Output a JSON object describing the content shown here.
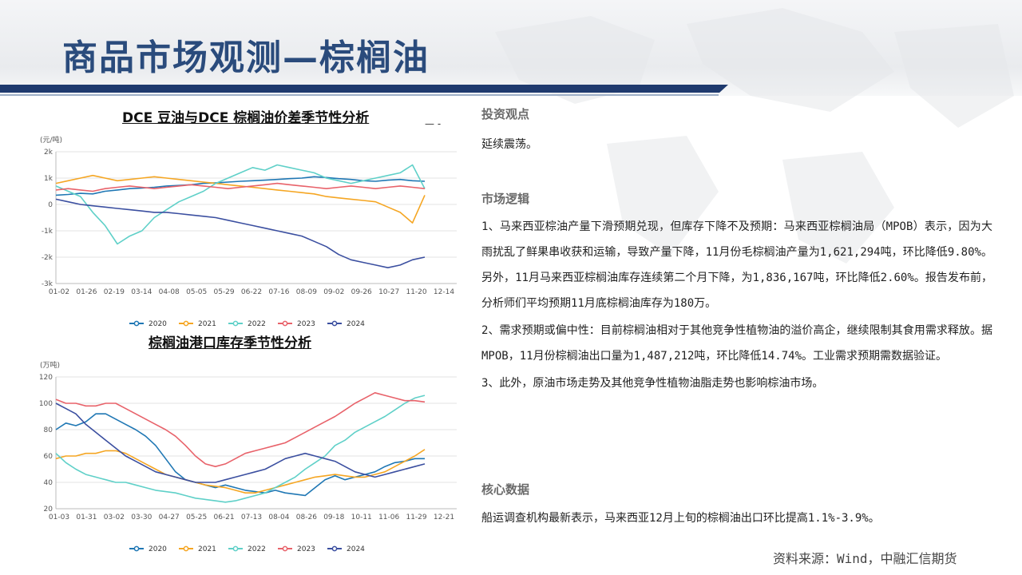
{
  "title": "商品市场观测—棕榈油",
  "chart_titles": {
    "chart1": "DCE 豆油与DCE 棕榈油价差季节性分析",
    "chart2": "棕榈油港口库存季节性分析"
  },
  "right": {
    "view_heading": "投资观点",
    "view_text": "延续震荡。",
    "logic_heading": "市场逻辑",
    "logic_paras": [
      "1、马来西亚棕油产量下滑预期兑现，但库存下降不及预期：马来西亚棕榈油局（MPOB）表示，因为大雨扰乱了鲜果串收获和运输，导致产量下降，11月份毛棕榈油产量为1,621,294吨，环比降低9.80%。另外，11月马来西亚棕榈油库存连续第二个月下降，为1,836,167吨，环比降低2.60%。报告发布前，分析师们平均预期11月底棕榈油库存为180万。",
      "2、需求预期或偏中性：目前棕榈油相对于其他竞争性植物油的溢价高企，继续限制其食用需求释放。据MPOB，11月份棕榈油出口量为1,487,212吨，环比降低14.74%。工业需求预期需数据验证。",
      "3、此外，原油市场走势及其他竞争性植物油脂走势也影响棕油市场。"
    ],
    "core_heading": "核心数据",
    "core_text": "船运调查机构最新表示，马来西亚12月上旬的棕榈油出口环比提高1.1%-3.9%。"
  },
  "source": "资料来源：Wind，中融汇信期货",
  "colors": {
    "title": "#2a4b7c",
    "bar": "#1f3a6e",
    "2020": "#1f77b4",
    "2021": "#f5a623",
    "2022": "#5fd0c8",
    "2023": "#e8626a",
    "2024": "#3b4fa0"
  },
  "chart_data": [
    {
      "type": "line",
      "unit": "(元/吨)",
      "ylim": [
        -3000,
        2000
      ],
      "yticks": [
        2000,
        1000,
        0,
        -1000,
        -2000,
        -3000
      ],
      "ytick_labels": [
        "2k",
        "1k",
        "0",
        "-1k",
        "-2k",
        "-3k"
      ],
      "xticks": [
        "01-02",
        "01-26",
        "02-19",
        "03-14",
        "04-08",
        "05-05",
        "05-29",
        "06-22",
        "07-16",
        "08-09",
        "09-02",
        "09-26",
        "10-27",
        "11-20",
        "12-14"
      ],
      "legend_position": "bottom",
      "series": [
        {
          "name": "2020",
          "values": [
            350,
            380,
            420,
            400,
            500,
            550,
            600,
            620,
            650,
            700,
            720,
            750,
            800,
            820,
            850,
            880,
            900,
            920,
            950,
            980,
            1000,
            1050,
            1020,
            980,
            950,
            900,
            880,
            920,
            950,
            900,
            880
          ]
        },
        {
          "name": "2021",
          "values": [
            800,
            900,
            1000,
            1100,
            1000,
            900,
            950,
            1000,
            1050,
            1000,
            950,
            900,
            850,
            800,
            750,
            700,
            650,
            600,
            550,
            500,
            450,
            400,
            300,
            250,
            200,
            150,
            100,
            -100,
            -300,
            -700,
            350
          ]
        },
        {
          "name": "2022",
          "values": [
            700,
            500,
            300,
            -300,
            -800,
            -1500,
            -1200,
            -1000,
            -500,
            -200,
            100,
            300,
            500,
            800,
            1000,
            1200,
            1400,
            1300,
            1500,
            1400,
            1300,
            1200,
            1000,
            900,
            800,
            900,
            1000,
            1100,
            1200,
            1500,
            600
          ]
        },
        {
          "name": "2023",
          "values": [
            550,
            600,
            550,
            500,
            600,
            650,
            700,
            650,
            600,
            650,
            700,
            750,
            700,
            650,
            600,
            650,
            700,
            750,
            800,
            750,
            700,
            650,
            600,
            650,
            700,
            650,
            600,
            650,
            700,
            650,
            600
          ]
        },
        {
          "name": "2024",
          "values": [
            200,
            100,
            0,
            -50,
            -100,
            -150,
            -200,
            -250,
            -300,
            -300,
            -350,
            -400,
            -450,
            -500,
            -600,
            -700,
            -800,
            -900,
            -1000,
            -1100,
            -1200,
            -1400,
            -1600,
            -1900,
            -2100,
            -2200,
            -2300,
            -2400,
            -2300,
            -2100,
            -2000
          ]
        }
      ]
    },
    {
      "type": "line",
      "unit": "(万吨)",
      "ylim": [
        20,
        120
      ],
      "yticks": [
        120,
        100,
        80,
        60,
        40,
        20
      ],
      "ytick_labels": [
        "120",
        "100",
        "80",
        "60",
        "40",
        "20"
      ],
      "xticks": [
        "01-03",
        "01-31",
        "03-02",
        "03-30",
        "04-27",
        "05-25",
        "06-21",
        "07-13",
        "08-04",
        "08-26",
        "09-18",
        "10-11",
        "11-06",
        "11-29",
        "12-21"
      ],
      "legend_position": "bottom",
      "series": [
        {
          "name": "2020",
          "values": [
            80,
            85,
            83,
            86,
            92,
            92,
            88,
            84,
            80,
            75,
            68,
            58,
            48,
            42,
            40,
            38,
            36,
            38,
            36,
            34,
            33,
            32,
            34,
            32,
            31,
            30,
            36,
            42,
            45,
            42,
            44,
            46,
            48,
            52,
            55,
            56,
            58,
            58
          ]
        },
        {
          "name": "2021",
          "values": [
            58,
            60,
            60,
            62,
            62,
            64,
            64,
            62,
            58,
            54,
            50,
            46,
            44,
            42,
            40,
            38,
            37,
            36,
            34,
            32,
            32,
            34,
            36,
            38,
            40,
            42,
            44,
            45,
            46,
            45,
            44,
            44,
            46,
            48,
            52,
            56,
            60,
            65
          ]
        },
        {
          "name": "2022",
          "values": [
            62,
            55,
            50,
            46,
            44,
            42,
            40,
            40,
            38,
            36,
            34,
            33,
            32,
            30,
            28,
            27,
            26,
            25,
            26,
            28,
            30,
            32,
            36,
            40,
            44,
            50,
            55,
            60,
            68,
            72,
            78,
            82,
            86,
            90,
            95,
            100,
            104,
            106
          ]
        },
        {
          "name": "2023",
          "values": [
            103,
            100,
            100,
            98,
            98,
            100,
            100,
            96,
            92,
            88,
            84,
            80,
            75,
            68,
            60,
            54,
            52,
            54,
            58,
            62,
            64,
            66,
            68,
            70,
            74,
            78,
            82,
            86,
            90,
            95,
            100,
            104,
            108,
            106,
            104,
            102,
            102,
            101
          ]
        },
        {
          "name": "2024",
          "values": [
            100,
            96,
            92,
            84,
            78,
            72,
            66,
            60,
            56,
            52,
            48,
            46,
            44,
            42,
            40,
            40,
            40,
            42,
            44,
            46,
            48,
            50,
            54,
            58,
            60,
            62,
            60,
            58,
            56,
            52,
            48,
            46,
            44,
            46,
            48,
            50,
            52,
            54
          ]
        }
      ]
    }
  ]
}
